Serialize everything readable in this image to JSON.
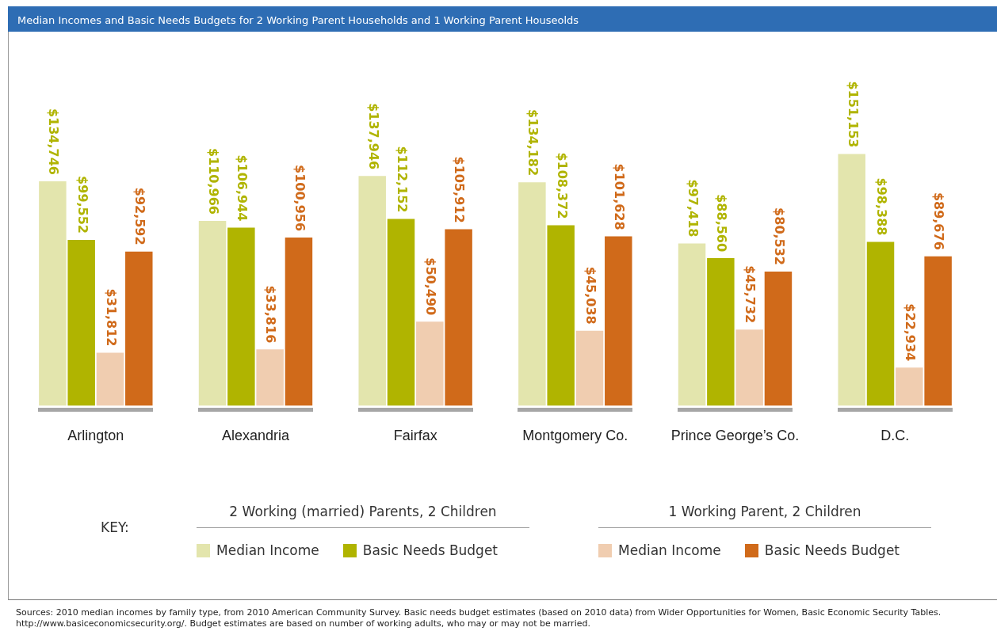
{
  "chart_data": {
    "type": "bar",
    "title": "Median Incomes and Basic Needs Budgets for 2 Working Parent Households and 1 Working Parent Houseolds",
    "categories": [
      "Arlington",
      "Alexandria",
      "Fairfax",
      "Montgomery Co.",
      "Prince George’s Co.",
      "D.C."
    ],
    "series": [
      {
        "name": "Median Income",
        "color": "#e3e5ad",
        "values": [
          134746,
          110966,
          137946,
          134182,
          97418,
          151153
        ],
        "value_labels": [
          "$134,746",
          "$110,966",
          "$137,946",
          "$134,182",
          "$97,418",
          "$151,153"
        ]
      },
      {
        "name": "Basic Needs Budget",
        "color": "#b0b400",
        "values": [
          99552,
          106944,
          112152,
          108372,
          88560,
          98388
        ],
        "value_labels": [
          "$99,552",
          "$106,944",
          "$112,152",
          "$108,372",
          "$88,560",
          "$98,388"
        ]
      },
      {
        "name": "Median Income",
        "color": "#f0cdb0",
        "values": [
          31812,
          33816,
          50490,
          45038,
          45732,
          22934
        ],
        "value_labels": [
          "$31,812",
          "$33,816",
          "$50,490",
          "$45,038",
          "$45,732",
          "$22,934"
        ]
      },
      {
        "name": "Basic Needs Budget",
        "color": "#d06a1a",
        "values": [
          92592,
          100956,
          105912,
          101628,
          80532,
          89676
        ],
        "value_labels": [
          "$92,592",
          "$100,956",
          "$105,912",
          "$101,628",
          "$80,532",
          "$89,676"
        ]
      }
    ],
    "grid": false,
    "tick_labels": "x",
    "legend": "bottom",
    "legend_title": "KEY:",
    "annotations": [
      "2 Working (married) Parents, 2 Children",
      "1 Working Parent, 2 Children",
      "Sources: 2010 median incomes by family type, from 2010 American Community Survey.  Basic needs budget estimates (based on 2010 data) from Wider Opportunities for Women, Basic Economic Security Tables.  http://www.basiceconomicsecurity.org/.  Budget estimates are based on number of working adults, who may or may not be married."
    ]
  }
}
